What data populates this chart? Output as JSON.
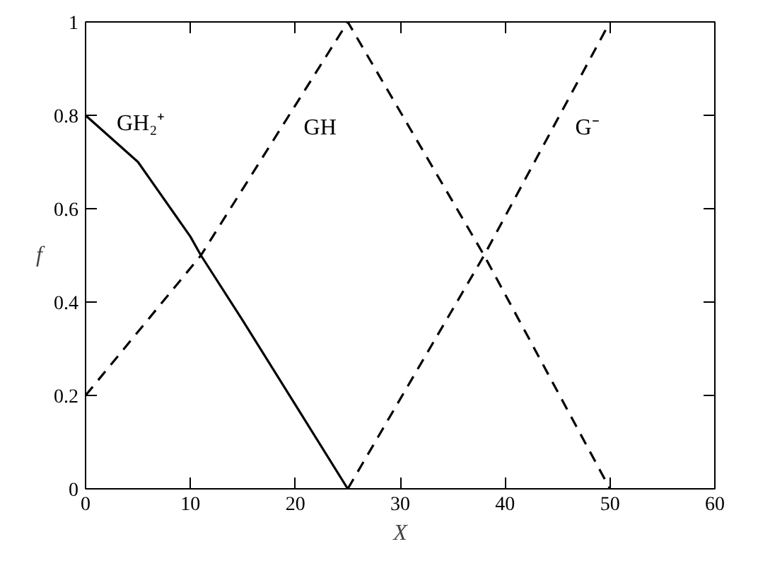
{
  "chart_data": {
    "type": "line",
    "xlabel": "X",
    "ylabel": "f",
    "xlim": [
      0,
      60
    ],
    "ylim": [
      0,
      1
    ],
    "xticks": [
      0,
      10,
      20,
      30,
      40,
      50,
      60
    ],
    "yticks": [
      0,
      0.2,
      0.4,
      0.6,
      0.8,
      1
    ],
    "grid": false,
    "marker": "none",
    "series": [
      {
        "name": "GH₂⁺",
        "color": "#000000",
        "line_style": "solid",
        "x": [
          0,
          5,
          10,
          11,
          15,
          20,
          25
        ],
        "values": [
          0.8,
          0.7,
          0.54,
          0.5,
          0.36,
          0.18,
          0
        ]
      },
      {
        "name": "GH",
        "color": "#000000",
        "line_style": "dashed",
        "x": [
          0,
          11,
          25,
          38,
          50
        ],
        "values": [
          0.2,
          0.5,
          1,
          0.5,
          0
        ]
      },
      {
        "name": "G⁻",
        "color": "#000000",
        "line_style": "dashed",
        "x": [
          25,
          38,
          50
        ],
        "values": [
          0,
          0.5,
          1
        ]
      }
    ]
  }
}
